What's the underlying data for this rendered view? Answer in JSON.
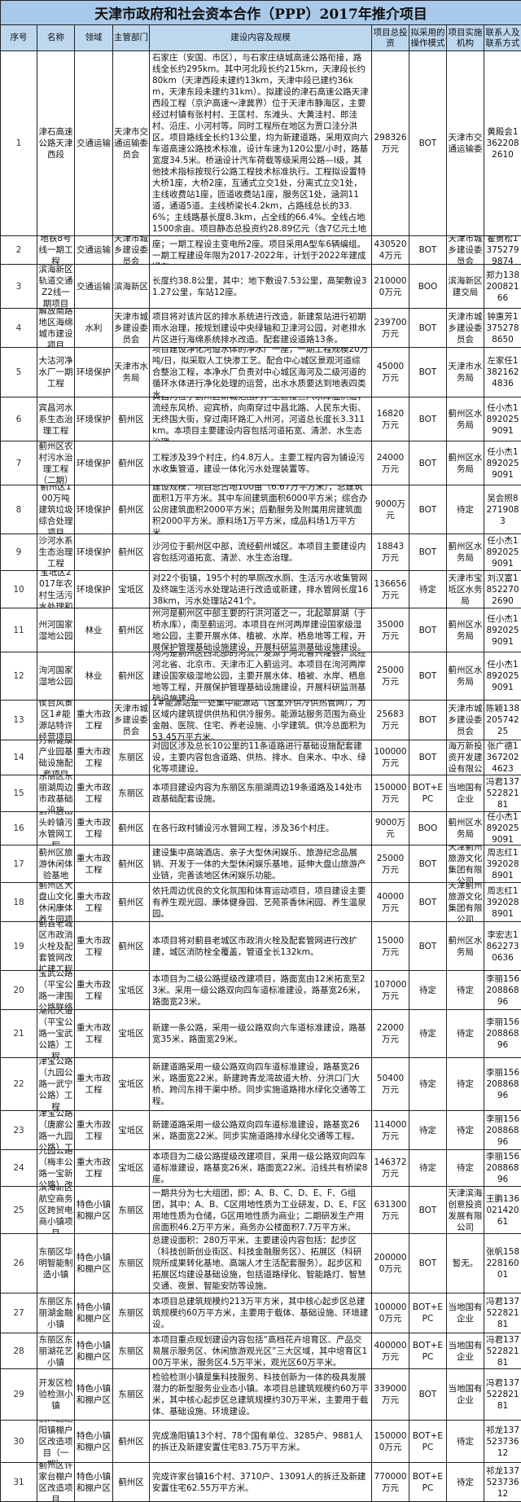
{
  "title": "天津市政府和社会资本合作（PPP）2017年推介项目",
  "headers": [
    "序号",
    "名称",
    "领域",
    "主管部门",
    "建设内容及规模",
    "项目总投资",
    "拟采用的操作模式",
    "项目实施机构",
    "联系人及联系方式"
  ],
  "colors": {
    "title_bg": "#a9c9ea",
    "header_bg": "#bdd7ee",
    "border": "#222222"
  },
  "rows": [
    {
      "no": "1",
      "name": "津石高速公路天津西段",
      "field": "交通运输",
      "dept": "天津市交通运输委员会",
      "desc": "规划津石高速公路东起天津滨海新区南港，向西途经滨海新区、静海、河北省廊坊（大城）、保定（任丘、高阳）、石家庄（安国、市区），与石家庄绕城高速公路衔接，路线全长约295km。其中河北段长约215km，天津段长约80km（天津西段未建约13km，天津中段已建约36km，天津东段未建约31km）。拟建设的津石高速公路天津西段工程（京沪高速～津冀界）位于天津市静海区，主要经过村镇有张村村、王匡村、东滩头、大黄洼村、郎洼村、沿庄、小河村等。同时工程所在地区为贾口洼分洪区。项目路线全长约13公里，均为新建道路，采用双向六车道高速公路技术标准，设计车速为120公里/小时，路基宽度34.5米。桥涵设计汽车荷载等级采用公路—I级，其他技术指标按现行公路工程技术标准执行。工程拟设置特大桥1座，大桥2座，互通式立交1处，分离式立交1处，主线收费站1座，匝道收费站1座，服务区1处，涵洞11道，通道5道。主线桥梁长4.2km，占路线总长的33.6%；主线路基长度8.3km，占全线的66.4%。全线占地1500余亩。项目静态总投资约28.89亿元（含7亿元土地征拆补偿费用），整体建设工期约为36个月，与河北省段津石高速公路同步通车。",
      "invest": "298326万元",
      "mode": "BOT",
      "org": "天津市交通运输委",
      "contact": "黄殿会13622082610"
    },
    {
      "no": "2",
      "name": "地铁8号线一期工程",
      "field": "交通运输",
      "dept": "天津市城乡建设委员会",
      "desc": "沿线设站25座，均为地下站。在津南区设双港车辆段一座；一期工程设主变电所2座。项目采用A型车6辆编组。一期工程建设年限为2017-2022年，计划于2022年建成通车。",
      "invest": "4305204万元",
      "mode": "BOT",
      "org": "天津市城乡建设委员会",
      "contact": "翟勇松13752799874"
    },
    {
      "no": "3",
      "name": "滨海新区轨道交通Z2线一期项目",
      "field": "交通运输",
      "dept": "滨海新区",
      "desc": "长度约38.8公里，其中：地下敷设7.53公里，高架敷设31.27公里，车站12座。",
      "invest": "2100000万元",
      "mode": "BOO",
      "org": "滨海新区建交局",
      "contact": "郑力13820082166"
    },
    {
      "no": "4",
      "name": "解放南路地区海绵城市建设项目",
      "field": "水利",
      "dept": "天津市城乡建设委员会",
      "desc": "项目将对该片区的排水系统进行改造，新建泵站进行初期雨水治理，按规划建设中央绿轴和卫津河公园，对老排水片区进行海绵系统排水改造。配套建设道路13条。",
      "invest": "239700万元",
      "mode": "BOT",
      "org": "天津市城乡建设委员会",
      "contact": "钟惠芳13752788650"
    },
    {
      "no": "5",
      "name": "大沽河净水厂一期工程",
      "field": "环境保护",
      "dept": "天津市水务局",
      "desc": "项目建设净化河道水体的净水厂一座，一期工程规模20万吨/日，拟采取人工快渗工艺。配合中心城区景观河道综合整治工程，本净水厂负责对中心城区海河及二级河道的循环水体进行净化处理的运营，出水水质要达到地表四类水。",
      "invest": "45000万元",
      "mode": "BOT",
      "org": "天津市水务局",
      "contact": "左家任13821624836"
    },
    {
      "no": "6",
      "name": "宾昌河水系生态治理工程",
      "field": "环境保护",
      "dept": "蓟州区",
      "desc": "宾昌河位于蓟州区新城范围内，上游接三八水库溢洪道，流经东风桥、迎宾桥，向南穿过中昌北路、人民东大街、无终国大街，穿过南环路汇入州河，河道总长度长3.311km。本项目主要建设内容包括河道拓宽、清淤、水生态治理。",
      "invest": "16820万元",
      "mode": "BOT",
      "org": "蓟州区水务局",
      "contact": "任小杰18920259091"
    },
    {
      "no": "7",
      "name": "蓟州区农村污水治理工程（二期）",
      "field": "环境保护",
      "dept": "蓟州区",
      "desc": "工程涉及39个村庄，约4.8万人。主要工程内容为铺设污水收集管道，建设一体化污水处理装置等。",
      "invest": "24000万元",
      "mode": "BOT",
      "org": "蓟州区水务局",
      "contact": "任小杰18920259091"
    },
    {
      "no": "8",
      "name": "蓟州区100万吨建筑垃圾综合处理项目",
      "field": "环境保护",
      "dept": "蓟州区",
      "desc": "建设规模：项目总占地100亩（6.67万平方米），总建筑面积1万平方米。其中车间建筑面积6000平方米；综合办公房建筑面积2000平方米；后勤服务及附属用房建筑面积2000平方米。原料场1万平方米，成品料场1万平方米。",
      "invest": "9000万元",
      "mode": "BOT",
      "org": "待定",
      "contact": "吴会照82719083"
    },
    {
      "no": "9",
      "name": "沙河水系生态治理工程",
      "field": "环境保护",
      "dept": "蓟州区",
      "desc": "沙河位于蓟州区中部，流经蓟州城区。本项目主要建设内容包括河道拓宽、清淤、水生态治理。",
      "invest": "18843万元",
      "mode": "BOT",
      "org": "蓟州区水务局",
      "contact": "任小杰18920259091"
    },
    {
      "no": "10",
      "name": "宝坻区2017年农村生活污水处理和",
      "field": "环境保护",
      "dept": "宝坻区",
      "desc": "对22个街镇，195个村的旱厕改水厕、生活污水收集管网及终端生活污水处理站进行改造或新建，排水管网长度1638km，污水处理站241个。",
      "invest": "136656万元",
      "mode": "待定",
      "org": "天津市宝坻区水务局",
      "contact": "刘汉富18522702690"
    },
    {
      "no": "11",
      "name": "州河国家湿地公园",
      "field": "林业",
      "dept": "蓟州区",
      "desc": "州河是蓟州区中部主要的行洪河道之一，北起翠屏湖（于桥水库），南至蓟运河。本项目在州河两岸建设国家级湿地公园，主要开展水体、植被、水岸、栖息地等工程，开展保护管理基础设施建设，开展科研监测基础设施建设。",
      "invest": "35000万元",
      "mode": "BOT",
      "org": "蓟州区水务局",
      "contact": "任小杰18920259091"
    },
    {
      "no": "12",
      "name": "泃河国家湿地公园",
      "field": "林业",
      "dept": "蓟州区",
      "desc": "泃河是蓟州区西北部的河流，发源于河北省兴隆县，流经河北省、北京市、天津市汇入蓟运河。本项目在泃河两岸建设国家级湿地公园，主要开展水体、植被、水岸、栖息地等工程，开展保护管理基础设施建设，开展科研监测基础设施建设。",
      "invest": "25000万元",
      "mode": "BOT",
      "org": "蓟州区水务局",
      "contact": "任小杰18920259091"
    },
    {
      "no": "13",
      "name": "侯台风景区1#能源站特许经营项目",
      "field": "重大市政工程",
      "dept": "天津市城乡建设委员会",
      "desc": "1#能源站是一处集中能源站（含室外供冷供热管网），为区域内建筑提供供热和供冷服务。能源站服务范围为商业金融、医院、住宅、养老设施、小学建筑。供冷总面积为53.45万平方米。",
      "invest": "25683万元",
      "mode": "BOT",
      "org": "天津市城乡建设委员会",
      "contact": "陈颖13820574225"
    },
    {
      "no": "14",
      "name": "万新健康产业园基础设施配套项目",
      "field": "重大市政工程",
      "dept": "东丽区",
      "desc": "对园区涉及总长10公里的11条道路进行基础设施配套建设，主要内容包含道路、供热、排水、自来水、中水、绿化等项建设。",
      "invest": "100000万元",
      "mode": "BOT",
      "org": "天津市滨海万新投资开发建设有限公司",
      "contact": "张广德13672024623"
    },
    {
      "no": "15",
      "name": "东丽区东丽湖周边市政基础设施",
      "field": "重大市政工程",
      "dept": "东丽区",
      "desc": "本项目建设内容为东丽区东丽湖周边19条道路及14处市政基础配套设施。",
      "invest": "150000万元",
      "mode": "BOT+EPC",
      "org": "当地国有企业",
      "contact": "冯君13752282181"
    },
    {
      "no": "16",
      "name": "蓟州区出头岭镇污水管网工程",
      "field": "重大市政工程",
      "dept": "蓟州区",
      "desc": "在各行政村铺设污水管网工程，涉及36个村庄。",
      "invest": "9000万元",
      "mode": "BOO",
      "org": "蓟州区水务局",
      "contact": "任小杰18920259091"
    },
    {
      "no": "17",
      "name": "蓟州区旅游休闲体验基地",
      "field": "重大市政工程",
      "dept": "蓟州区",
      "desc": "建设集中高端酒店、亲子大型休闲娱乐、旅游纪念品展销、开发于一体的大型休闲娱乐基地，延伸大盘山旅游产业链，完善该地区休闲娱乐功能。",
      "invest": "25000万元",
      "mode": "BOT",
      "org": "天津蓟州旅游文化集团有限公司",
      "contact": "周志红13920288901"
    },
    {
      "no": "18",
      "name": "蓟州区大盘山文化休闲康体养生园项",
      "field": "重大市政工程",
      "dept": "蓟州区",
      "desc": "依托周边优良的文化氛围和体育运动项目，项目建设主要有养生观光园、康体健身园、艺苑茶香休闲园、养生温泉园。",
      "invest": "40000万元",
      "mode": "BOT",
      "org": "天津蓟州旅游文化集团有限公司",
      "contact": "周志红13920288901"
    },
    {
      "no": "19",
      "name": "蓟县老城区市政消火栓及配套管网改扩建工程",
      "field": "重大市政工程",
      "dept": "蓟州区",
      "desc": "本项目将对蓟县老城区市政消火栓及配套管网进行改扩建，城区消防栓全覆盖，管道全长132km。",
      "invest": "15000万元",
      "mode": "BOT",
      "org": "蓟州区水务局",
      "contact": "李宏志18622730636"
    },
    {
      "no": "20",
      "name": "宝武公路（平宝公路一津围公路联络",
      "field": "重大市政工程",
      "dept": "宝坻区",
      "desc": "本项目为二级公路提级改建项目，路面宽由12米拓宽至23米。采用一级公路双向四车道标准建设，路基宽26米，路面宽23米。",
      "invest": "107000万元",
      "mode": "待定",
      "org": "待定",
      "contact": "李丽15620886896"
    },
    {
      "no": "21",
      "name": "潮阳大道（平宝公路一宝武公路）工程",
      "field": "重大市政工程",
      "dept": "宝坻区",
      "desc": "新建一条公路，采用一级公路双向六车道标准建设，路基宽35米，路面宽29米。",
      "invest": "22000万元",
      "mode": "待定",
      "org": "待定",
      "contact": "李丽15620886896"
    },
    {
      "no": "22",
      "name": "津宝公路（九园公路一武宁公路）工程",
      "field": "重大市政工程",
      "dept": "宝坻区",
      "desc": "新建道路采用一级公路双向四车道标准建设，路基宽26米，路面宽22米。新建跨青龙湾故道大桥、分洪口门大桥、跨闫东排干渠中桥。同步实施道路排水绿化交通等工程。",
      "invest": "50400万元",
      "mode": "待定",
      "org": "待定",
      "contact": "李丽15620886896"
    },
    {
      "no": "23",
      "name": "津宝公路（唐廊公路一九园公路）工",
      "field": "重大市政工程",
      "dept": "宝坻区",
      "desc": "新建道路采用一级公路双向四车道标准建设，路基宽26米，路面宽22米。同步实施道路排水绿化交通等工程。",
      "invest": "114000万元",
      "mode": "待定",
      "org": "待定",
      "contact": "李丽15620886896"
    },
    {
      "no": "24",
      "name": "九园公路（梅丰公路一宝新公路）改",
      "field": "重大市政工程",
      "dept": "宝坻区",
      "desc": "本项目为二级公路提级改建项目，采用一级公路双向四车道标准建设，路基宽26米，路面宽22米。沿线共有桥梁8座。",
      "invest": "146372万元",
      "mode": "待定",
      "org": "待定",
      "contact": "李丽15620886896"
    },
    {
      "no": "25",
      "name": "滨海新区航空商务区跨贸电商小镇项目",
      "field": "特色小镇和棚户区",
      "dept": "东丽区",
      "desc": "一期共分为七大组团，即：A、B、C、D、E、F、G组团，其中：A、B、C区用地性质为工业研发，D、E、F区用地性质为仓储，G区用地性质为商业；二期研发生产用房面积46.2万平方米，商务办公楼面积7.7万平方米。",
      "invest": "631300万元",
      "mode": "BOT",
      "org": "天津滨海创意投资发展有限公司",
      "contact": "王鹏13602142061"
    },
    {
      "no": "26",
      "name": "东丽区华明智能制造小镇",
      "field": "特色小镇和棚户区",
      "dept": "东丽区",
      "desc": "总建设面积：280万平米。主要建设内容包括：起步区（科技创新创业街区、科技金融服务区）、拓展区（科研院所成果转化基地、高端人才生活配套服务）。起步区和拓展区均建设基础设施，包括道路绿化、智能路灯、智慧交通、夜景、智能安防等设施。",
      "invest": "2000000万元",
      "mode": "BOT",
      "org": "暂无。",
      "contact": "张帆15822816001"
    },
    {
      "no": "27",
      "name": "东丽区东丽湖金融小镇",
      "field": "特色小镇和棚户区",
      "dept": "东丽区",
      "desc": "本项目总建筑规模约213万平方米，其中核心起步区总建筑规模约60万平方米，主要用于载体、基础设施、环境建设。",
      "invest": "1000000万元",
      "mode": "BOT+EPC",
      "org": "当地国有企业",
      "contact": "冯君13752282181"
    },
    {
      "no": "28",
      "name": "东丽区东丽湖花艺小镇",
      "field": "特色小镇和棚户区",
      "dept": "东丽区",
      "desc": "本项目重点规划建设内容包括“高档花卉培育区、产品交易展示服务区、休闲旅游观光区”三大区域，其中培育区100万平米，服务区4.5万平米，观光区60万平米。",
      "invest": "400000万元",
      "mode": "BOT+EPC",
      "org": "当地国有企业",
      "contact": "冯君13752282181"
    },
    {
      "no": "29",
      "name": "开发区检验检测小镇",
      "field": "特色小镇和棚户区",
      "dept": "东丽区",
      "desc": "检验检测小镇是集科技服务、科技创新为一体的极具发展潜力的新型服务业业态小镇。本项目总建筑规模约60万平米，其中核心起步区总建筑规模约30万平米，主要用于载体、基础设施、环境建设。",
      "invest": "339000万元",
      "mode": "BOT",
      "org": "当地国有企业",
      "contact": "冯君13752282181"
    },
    {
      "no": "30",
      "name": "蓟州区渔阳镇棚户区改造项目（一期）",
      "field": "特色小镇和棚户区",
      "dept": "蓟州区",
      "desc": "完成渔阳镇13个村、78个国有单位、3285户、9881人的拆迁及新建安置住宅83.75万平方米。",
      "invest": "1500000万元",
      "mode": "BOT+EPC",
      "org": "待定",
      "contact": "祁龙13752373612"
    },
    {
      "no": "31",
      "name": "蓟州区许家台棚户区改造项目",
      "field": "特色小镇和棚户区",
      "dept": "蓟州区",
      "desc": "完成许家台镇16个村、3710户、13091人的拆迁及新建安置住宅62.55万平方米。",
      "invest": "770000万元",
      "mode": "BOT+EPC",
      "org": "待定",
      "contact": "祁龙13752373612"
    }
  ]
}
